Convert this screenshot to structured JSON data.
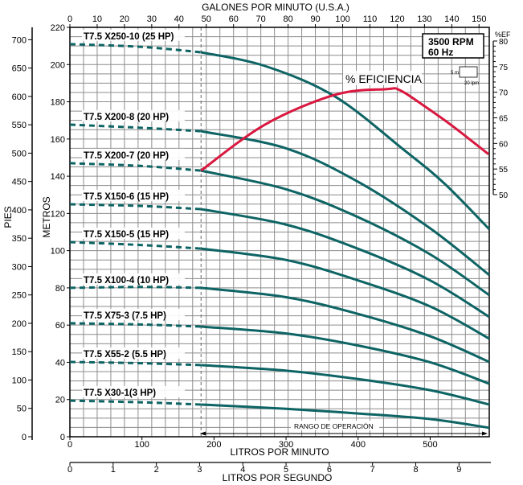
{
  "chart_data": {
    "type": "line",
    "top_xlabel": "GALONES POR MINUTO (U.S.A.)",
    "top_ticks": [
      0,
      10,
      20,
      30,
      40,
      50,
      60,
      70,
      80,
      90,
      100,
      110,
      120,
      130,
      140,
      150
    ],
    "xlabel": "LITROS POR MINUTO",
    "x_ticks": [
      0,
      100,
      200,
      300,
      400,
      500
    ],
    "xlim": [
      0,
      582
    ],
    "x2label": "LITROS POR SEGUNDO",
    "x2_ticks": [
      0,
      1,
      2,
      3,
      4,
      5,
      6,
      7,
      8,
      9
    ],
    "ylabel": "METROS",
    "ylim": [
      0,
      220
    ],
    "y_ticks": [
      0,
      20,
      40,
      60,
      80,
      100,
      120,
      140,
      160,
      180,
      200,
      220
    ],
    "y2label": "PIES",
    "y2_ticks": [
      0,
      50,
      100,
      150,
      200,
      250,
      300,
      350,
      400,
      450,
      500,
      550,
      600,
      650,
      700
    ],
    "eff_label": "%EF",
    "eff_ticks": [
      50,
      55,
      60,
      65,
      70,
      75,
      80
    ],
    "eff_lim": [
      50,
      80
    ],
    "grid": true,
    "rpm_box": [
      "3500 RPM",
      "60 Hz"
    ],
    "scale_legend": {
      "v": "5 m",
      "h": "20 lpm"
    },
    "operating_range_label": "RANGO DE OPERACIÓN",
    "operating_range_start": 182,
    "efficiency": {
      "name": "% EFICIENCIA",
      "color": "#d9173f",
      "x": [
        182,
        271,
        368,
        439,
        458,
        494,
        531,
        581
      ],
      "y": [
        54.7,
        63.7,
        69.5,
        70.6,
        70.4,
        67.1,
        63.4,
        57.9
      ]
    },
    "curve_color": "#0e6464",
    "series": [
      {
        "name": "T7.5 X250-10 (25 HP)",
        "x": [
          0,
          100,
          182,
          271,
          368,
          464,
          520,
          582
        ],
        "y": [
          211,
          209.5,
          206.6,
          199.2,
          182.8,
          154,
          136,
          111.5
        ]
      },
      {
        "name": "T7.5 X200-8 (20 HP)",
        "x": [
          0,
          100,
          182,
          300,
          400,
          500,
          582
        ],
        "y": [
          167.7,
          166,
          164.2,
          155,
          137,
          112,
          86.9
        ]
      },
      {
        "name": "T7.5 X200-7 (20 HP)",
        "x": [
          0,
          100,
          182,
          300,
          400,
          500,
          582
        ],
        "y": [
          147,
          145.5,
          143,
          133,
          118,
          98,
          76.1
        ]
      },
      {
        "name": "T7.5 X150-6 (15 HP)",
        "x": [
          0,
          100,
          182,
          300,
          400,
          500,
          582
        ],
        "y": [
          124.9,
          124,
          122.3,
          114,
          101,
          84,
          64.4
        ]
      },
      {
        "name": "T7.5 X150-5 (15 HP)",
        "x": [
          0,
          100,
          182,
          300,
          400,
          500,
          582
        ],
        "y": [
          104.6,
          103,
          101.1,
          95,
          84,
          70,
          52.7
        ]
      },
      {
        "name": "T7.5 X100-4 (10 HP)",
        "x": [
          0,
          100,
          182,
          300,
          400,
          500,
          582
        ],
        "y": [
          80,
          80.5,
          80,
          75,
          66,
          54,
          40.2
        ]
      },
      {
        "name": "T7.5 X75-3  (7.5 HP)",
        "x": [
          0,
          100,
          182,
          300,
          400,
          500,
          582
        ],
        "y": [
          61,
          60.3,
          59.2,
          55.5,
          49,
          40,
          28.5
        ]
      },
      {
        "name": "T7.5 X55-2 (5.5 HP)",
        "x": [
          0,
          100,
          182,
          300,
          400,
          500,
          582
        ],
        "y": [
          40.2,
          39.5,
          38.5,
          35.5,
          31,
          25,
          17.3
        ]
      },
      {
        "name": "T7.5 X30-1(3 HP)",
        "x": [
          0,
          100,
          182,
          300,
          400,
          500,
          582
        ],
        "y": [
          19.4,
          18.5,
          17.3,
          15,
          12.5,
          9.5,
          4.8
        ]
      }
    ]
  }
}
